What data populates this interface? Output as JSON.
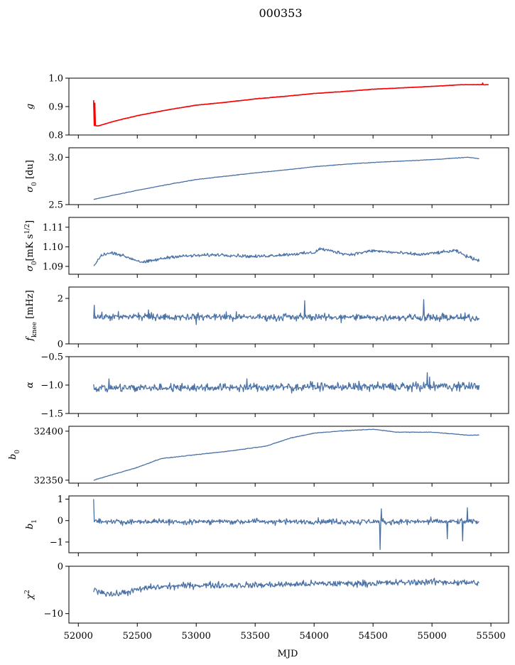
{
  "chart_data": {
    "title": "000353",
    "type": "line",
    "x_axis": {
      "label": "MJD",
      "range": [
        51920,
        55650
      ],
      "ticks": [
        52000,
        52500,
        53000,
        53500,
        54000,
        54500,
        55000,
        55500
      ],
      "tick_labels": [
        "52000",
        "52500",
        "53000",
        "53500",
        "54000",
        "54500",
        "55000",
        "55500"
      ]
    },
    "panels": [
      {
        "id": "g",
        "ylabel": "g",
        "ylim": [
          0.8,
          1.0
        ],
        "yticks": [
          0.8,
          0.9,
          1.0
        ],
        "ytick_labels": [
          "0.8",
          "0.9",
          "1.0"
        ],
        "color": "#4c72a6",
        "overlay_color": "#ff0000",
        "x_start": 52130,
        "x_end": 55400,
        "baseline": [
          [
            52130,
            0.833
          ],
          [
            52170,
            0.832
          ],
          [
            52300,
            0.848
          ],
          [
            52500,
            0.868
          ],
          [
            52750,
            0.888
          ],
          [
            53000,
            0.905
          ],
          [
            53250,
            0.915
          ],
          [
            53500,
            0.927
          ],
          [
            53750,
            0.936
          ],
          [
            54000,
            0.946
          ],
          [
            54250,
            0.953
          ],
          [
            54500,
            0.961
          ],
          [
            54750,
            0.966
          ],
          [
            55000,
            0.971
          ],
          [
            55250,
            0.977
          ],
          [
            55400,
            0.977
          ]
        ],
        "noise": 0.001,
        "overlay_x_end": 55480,
        "spikes": [
          {
            "x": 52132,
            "y": 0.922
          },
          {
            "x": 52138,
            "y": 0.912
          },
          {
            "x": 55430,
            "y": 0.983
          }
        ]
      },
      {
        "id": "sigma0_du",
        "ylabel": "σ0 [du]",
        "ylim": [
          2.5,
          3.1
        ],
        "yticks": [
          2.5,
          3.0
        ],
        "ytick_labels": [
          "2.5",
          "3.0"
        ],
        "color": "#4c72a6",
        "x_start": 52130,
        "x_end": 55400,
        "baseline": [
          [
            52130,
            2.555
          ],
          [
            52300,
            2.6
          ],
          [
            52500,
            2.65
          ],
          [
            52750,
            2.71
          ],
          [
            53000,
            2.765
          ],
          [
            53250,
            2.8
          ],
          [
            53500,
            2.835
          ],
          [
            53750,
            2.865
          ],
          [
            54000,
            2.9
          ],
          [
            54250,
            2.925
          ],
          [
            54500,
            2.945
          ],
          [
            54750,
            2.96
          ],
          [
            55000,
            2.975
          ],
          [
            55250,
            2.995
          ],
          [
            55300,
            3.0
          ],
          [
            55400,
            2.985
          ]
        ],
        "noise": 0.004
      },
      {
        "id": "sigma0_mK",
        "ylabel": "σ0[mK s^1/2]",
        "ylim": [
          1.086,
          1.115
        ],
        "yticks": [
          1.09,
          1.1,
          1.11
        ],
        "ytick_labels": [
          "1.09",
          "1.10",
          "1.11"
        ],
        "color": "#4c72a6",
        "x_start": 52130,
        "x_end": 55400,
        "baseline": [
          [
            52130,
            1.09
          ],
          [
            52200,
            1.096
          ],
          [
            52300,
            1.097
          ],
          [
            52450,
            1.094
          ],
          [
            52550,
            1.092
          ],
          [
            52800,
            1.095
          ],
          [
            53200,
            1.096
          ],
          [
            53500,
            1.095
          ],
          [
            54000,
            1.097
          ],
          [
            54050,
            1.099
          ],
          [
            54300,
            1.096
          ],
          [
            54500,
            1.098
          ],
          [
            54900,
            1.096
          ],
          [
            55200,
            1.098
          ],
          [
            55300,
            1.095
          ],
          [
            55400,
            1.093
          ]
        ],
        "noise": 0.0012
      },
      {
        "id": "fknee",
        "ylabel": "fknee [mHz]",
        "ylim": [
          0,
          2.5
        ],
        "yticks": [
          0,
          2
        ],
        "ytick_labels": [
          "0",
          "2"
        ],
        "color": "#4c72a6",
        "x_start": 52130,
        "x_end": 55400,
        "baseline": [
          [
            52130,
            1.2
          ],
          [
            55400,
            1.15
          ]
        ],
        "noise": 0.22,
        "spikes": [
          {
            "x": 52135,
            "y": 1.7
          },
          {
            "x": 53920,
            "y": 1.9
          },
          {
            "x": 54930,
            "y": 1.95
          }
        ]
      },
      {
        "id": "alpha",
        "ylabel": "α",
        "ylim": [
          -1.5,
          -0.5
        ],
        "yticks": [
          -1.5,
          -1.0,
          -0.5
        ],
        "ytick_labels": [
          "−1.5",
          "−1.0",
          "−0.5"
        ],
        "color": "#4c72a6",
        "x_start": 52130,
        "x_end": 55400,
        "baseline": [
          [
            52130,
            -1.05
          ],
          [
            55400,
            -1.02
          ]
        ],
        "noise": 0.1,
        "spikes": [
          {
            "x": 54960,
            "y": -0.78
          }
        ]
      },
      {
        "id": "b0",
        "ylabel": "b0",
        "ylim": [
          32347,
          32405
        ],
        "yticks": [
          32350,
          32400
        ],
        "ytick_labels": [
          "32350",
          "32400"
        ],
        "color": "#4c72a6",
        "x_start": 52130,
        "x_end": 55400,
        "baseline": [
          [
            52130,
            32350
          ],
          [
            52300,
            32356
          ],
          [
            52500,
            32363
          ],
          [
            52700,
            32372
          ],
          [
            53000,
            32376
          ],
          [
            53300,
            32380
          ],
          [
            53600,
            32385
          ],
          [
            53800,
            32393
          ],
          [
            54000,
            32398
          ],
          [
            54200,
            32400
          ],
          [
            54500,
            32402
          ],
          [
            54700,
            32399
          ],
          [
            55000,
            32399
          ],
          [
            55300,
            32396
          ],
          [
            55400,
            32396
          ]
        ],
        "noise": 0.45
      },
      {
        "id": "b1",
        "ylabel": "b1",
        "ylim": [
          -1.5,
          1.15
        ],
        "yticks": [
          -1,
          0,
          1
        ],
        "ytick_labels": [
          "−1",
          "0",
          "1"
        ],
        "color": "#4c72a6",
        "x_start": 52130,
        "x_end": 55400,
        "baseline": [
          [
            52130,
            -0.05
          ],
          [
            55400,
            -0.05
          ]
        ],
        "noise": 0.17,
        "spikes": [
          {
            "x": 52132,
            "y": 1.0
          },
          {
            "x": 54560,
            "y": -1.35
          },
          {
            "x": 54570,
            "y": 0.55
          },
          {
            "x": 55130,
            "y": -0.85
          },
          {
            "x": 55260,
            "y": -0.95
          },
          {
            "x": 55300,
            "y": 0.6
          }
        ]
      },
      {
        "id": "chi2",
        "ylabel": "χ2",
        "ylim": [
          -12,
          0
        ],
        "yticks": [
          -10,
          0
        ],
        "ytick_labels": [
          "−10",
          "0"
        ],
        "color": "#4c72a6",
        "x_start": 52130,
        "x_end": 55400,
        "baseline": [
          [
            52130,
            -5
          ],
          [
            52300,
            -6
          ],
          [
            52600,
            -4.5
          ],
          [
            53000,
            -4
          ],
          [
            53500,
            -4
          ],
          [
            54000,
            -3.7
          ],
          [
            54500,
            -3.6
          ],
          [
            55000,
            -3.3
          ],
          [
            55400,
            -3.5
          ]
        ],
        "noise": 1.0
      }
    ]
  }
}
